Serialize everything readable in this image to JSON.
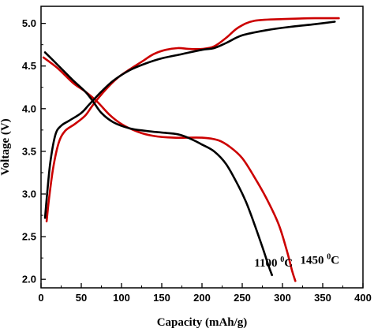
{
  "chart_data": {
    "type": "line",
    "title": "",
    "xlabel": "Capacity (mAh/g)",
    "ylabel": "Voltage (V)",
    "xlim": [
      0,
      400
    ],
    "ylim": [
      1.9,
      5.2
    ],
    "xticks": [
      0,
      50,
      100,
      150,
      200,
      250,
      300,
      350,
      400
    ],
    "yticks": [
      2.0,
      2.5,
      3.0,
      3.5,
      4.0,
      4.5,
      5.0
    ],
    "xtick_labels": [
      "0",
      "50",
      "100",
      "150",
      "200",
      "250",
      "300",
      "350",
      "400"
    ],
    "ytick_labels": [
      "2.0",
      "2.5",
      "3.0",
      "3.5",
      "4.0",
      "4.5",
      "5.0"
    ],
    "grid": false,
    "series": [
      {
        "name": "1100 0C",
        "color": "#000000",
        "segments": [
          {
            "kind": "charge",
            "points": [
              [
                5,
                2.72
              ],
              [
                8,
                3.05
              ],
              [
                12,
                3.4
              ],
              [
                18,
                3.7
              ],
              [
                25,
                3.8
              ],
              [
                35,
                3.86
              ],
              [
                50,
                3.95
              ],
              [
                60,
                4.05
              ],
              [
                75,
                4.2
              ],
              [
                90,
                4.33
              ],
              [
                110,
                4.45
              ],
              [
                130,
                4.53
              ],
              [
                150,
                4.59
              ],
              [
                175,
                4.64
              ],
              [
                200,
                4.69
              ],
              [
                215,
                4.71
              ],
              [
                230,
                4.77
              ],
              [
                250,
                4.86
              ],
              [
                280,
                4.92
              ],
              [
                310,
                4.96
              ],
              [
                340,
                4.99
              ],
              [
                365,
                5.02
              ]
            ]
          },
          {
            "kind": "discharge",
            "points": [
              [
                5,
                4.66
              ],
              [
                20,
                4.52
              ],
              [
                40,
                4.33
              ],
              [
                55,
                4.2
              ],
              [
                65,
                4.08
              ],
              [
                75,
                3.95
              ],
              [
                90,
                3.84
              ],
              [
                110,
                3.77
              ],
              [
                130,
                3.74
              ],
              [
                150,
                3.72
              ],
              [
                170,
                3.7
              ],
              [
                185,
                3.65
              ],
              [
                200,
                3.58
              ],
              [
                215,
                3.5
              ],
              [
                230,
                3.35
              ],
              [
                245,
                3.1
              ],
              [
                255,
                2.9
              ],
              [
                265,
                2.65
              ],
              [
                275,
                2.38
              ],
              [
                283,
                2.15
              ],
              [
                287,
                2.05
              ]
            ]
          }
        ]
      },
      {
        "name": "1450 0C",
        "color": "#cc0000",
        "segments": [
          {
            "kind": "charge",
            "points": [
              [
                7,
                2.68
              ],
              [
                10,
                2.95
              ],
              [
                15,
                3.3
              ],
              [
                22,
                3.6
              ],
              [
                30,
                3.74
              ],
              [
                42,
                3.82
              ],
              [
                55,
                3.92
              ],
              [
                65,
                4.05
              ],
              [
                80,
                4.22
              ],
              [
                95,
                4.36
              ],
              [
                110,
                4.46
              ],
              [
                125,
                4.55
              ],
              [
                140,
                4.64
              ],
              [
                155,
                4.69
              ],
              [
                170,
                4.71
              ],
              [
                185,
                4.7
              ],
              [
                200,
                4.7
              ],
              [
                215,
                4.73
              ],
              [
                230,
                4.83
              ],
              [
                245,
                4.95
              ],
              [
                265,
                5.03
              ],
              [
                300,
                5.05
              ],
              [
                340,
                5.06
              ],
              [
                370,
                5.06
              ]
            ]
          },
          {
            "kind": "discharge",
            "points": [
              [
                3,
                4.6
              ],
              [
                20,
                4.48
              ],
              [
                40,
                4.3
              ],
              [
                55,
                4.2
              ],
              [
                70,
                4.08
              ],
              [
                85,
                3.93
              ],
              [
                100,
                3.82
              ],
              [
                120,
                3.73
              ],
              [
                140,
                3.68
              ],
              [
                165,
                3.66
              ],
              [
                200,
                3.66
              ],
              [
                220,
                3.63
              ],
              [
                235,
                3.55
              ],
              [
                250,
                3.42
              ],
              [
                265,
                3.2
              ],
              [
                280,
                2.95
              ],
              [
                295,
                2.65
              ],
              [
                305,
                2.35
              ],
              [
                312,
                2.1
              ],
              [
                316,
                1.98
              ]
            ]
          }
        ]
      }
    ],
    "annotations": [
      {
        "base": "1100 ",
        "sup": "0",
        "tail": "C",
        "x": 265,
        "y": 2.15
      },
      {
        "base": "1450 ",
        "sup": "0",
        "tail": "C",
        "x": 322,
        "y": 2.18
      }
    ]
  }
}
